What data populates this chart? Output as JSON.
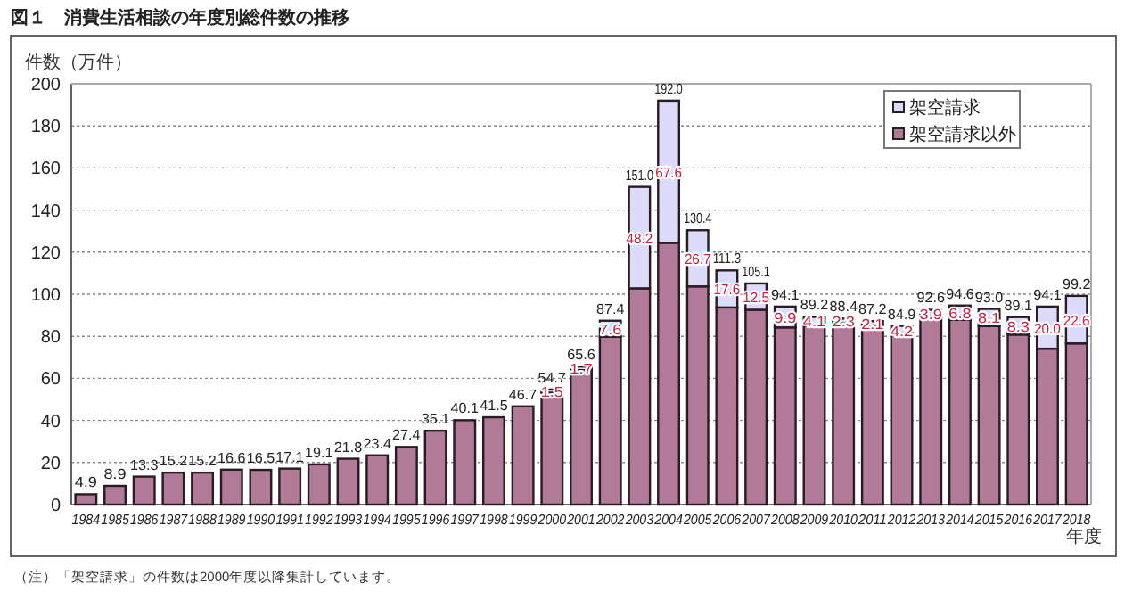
{
  "chart_data": {
    "type": "bar",
    "stacked": true,
    "title": "図１　消費生活相談の年度別総件数の推移",
    "ylabel": "件数（万件）",
    "xlabel": "年度",
    "annotations": [
      "（注）「架空請求」の件数は2000年度以降集計しています。"
    ],
    "categories": [
      "1984",
      "1985",
      "1986",
      "1987",
      "1988",
      "1989",
      "1990",
      "1991",
      "1992",
      "1993",
      "1994",
      "1995",
      "1996",
      "1997",
      "1998",
      "1999",
      "2000",
      "2001",
      "2002",
      "2003",
      "2004",
      "2005",
      "2006",
      "2007",
      "2008",
      "2009",
      "2010",
      "2011",
      "2012",
      "2013",
      "2014",
      "2015",
      "2016",
      "2017",
      "2018"
    ],
    "series": [
      {
        "name": "架空請求以外",
        "color": "#b07a98",
        "values": [
          4.9,
          8.9,
          13.3,
          15.2,
          15.2,
          16.6,
          16.5,
          17.1,
          19.1,
          21.8,
          23.4,
          27.4,
          35.1,
          40.1,
          41.5,
          46.7,
          53.2,
          63.9,
          79.8,
          102.8,
          124.4,
          103.7,
          93.7,
          92.6,
          84.2,
          85.1,
          86.1,
          85.1,
          80.7,
          88.7,
          87.8,
          84.9,
          80.8,
          74.1,
          76.6
        ]
      },
      {
        "name": "架空請求",
        "color": "#dcdcfa",
        "values": [
          null,
          null,
          null,
          null,
          null,
          null,
          null,
          null,
          null,
          null,
          null,
          null,
          null,
          null,
          null,
          null,
          1.5,
          1.7,
          7.6,
          48.2,
          67.6,
          26.7,
          17.6,
          12.5,
          9.9,
          4.1,
          2.3,
          2.1,
          4.2,
          3.9,
          6.8,
          8.1,
          8.3,
          20.0,
          22.6
        ],
        "value_labels": [
          null,
          null,
          null,
          null,
          null,
          null,
          null,
          null,
          null,
          null,
          null,
          null,
          null,
          null,
          null,
          null,
          "1.5",
          "1.7",
          "7.6",
          "48.2",
          "67.6",
          "26.7",
          "17.6",
          "12.5",
          "9.9",
          "4.1",
          "2.3",
          "2.1",
          "4.2",
          "3.9",
          "6.8",
          "8.1",
          "8.3",
          "20.0",
          "22.6"
        ]
      }
    ],
    "totals": [
      "4.9",
      "8.9",
      "13.3",
      "15.2",
      "15.2",
      "16.6",
      "16.5",
      "17.1",
      "19.1",
      "21.8",
      "23.4",
      "27.4",
      "35.1",
      "40.1",
      "41.5",
      "46.7",
      "54.7",
      "65.6",
      "87.4",
      "151.0",
      "192.0",
      "130.4",
      "111.3",
      "105.1",
      "94.1",
      "89.2",
      "88.4",
      "87.2",
      "84.9",
      "92.6",
      "94.6",
      "93.0",
      "89.1",
      "94.1",
      "99.2"
    ],
    "ylim": [
      0,
      200
    ],
    "yticks": [
      0,
      20,
      40,
      60,
      80,
      100,
      120,
      140,
      160,
      180,
      200
    ],
    "grid": "y",
    "legend": "top right"
  }
}
